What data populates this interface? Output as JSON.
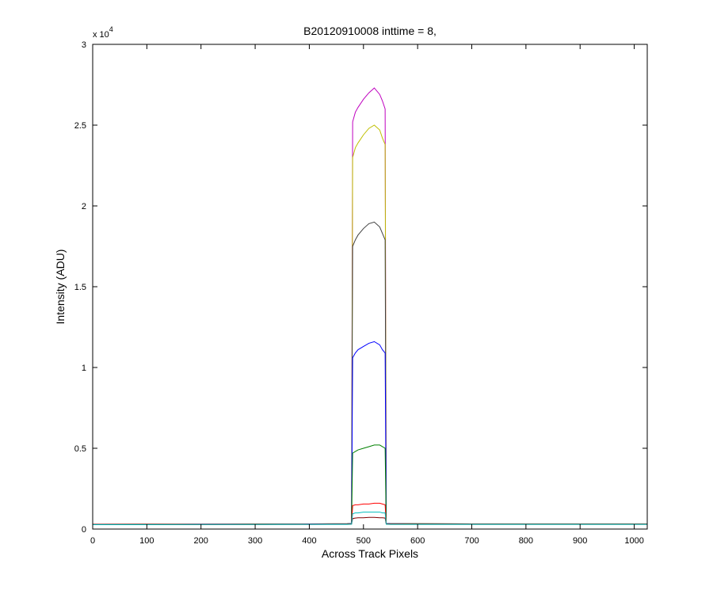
{
  "chart_data": {
    "type": "line",
    "title": "B20120910008 inttime = 8,",
    "x_label": "Across Track Pixels",
    "y_label": "Intensity (ADU)",
    "y_multiplier": {
      "base": "x 10",
      "exponent": "4"
    },
    "xlim": [
      0,
      1024
    ],
    "xticks": [
      0,
      100,
      200,
      300,
      400,
      500,
      600,
      700,
      800,
      900,
      1000
    ],
    "ylim": [
      0,
      30000
    ],
    "yticks": [
      0,
      {
        "value": 5000,
        "label": "0.5"
      },
      {
        "value": 10000,
        "label": "1"
      },
      {
        "value": 15000,
        "label": "1.5"
      },
      {
        "value": 20000,
        "label": "2"
      },
      {
        "value": 25000,
        "label": "2.5"
      },
      {
        "value": 30000,
        "label": "3"
      }
    ],
    "x": [
      0,
      100,
      200,
      300,
      400,
      470,
      478,
      480,
      485,
      490,
      500,
      510,
      520,
      530,
      535,
      540,
      542,
      550,
      600,
      700,
      800,
      900,
      1000,
      1024
    ],
    "series": [
      {
        "color": "#bf00bf",
        "values": [
          300,
          300,
          300,
          310,
          320,
          330,
          350,
          25200,
          25800,
          26100,
          26600,
          27000,
          27300,
          26900,
          26500,
          26000,
          350,
          340,
          330,
          320,
          320,
          320,
          320,
          320
        ]
      },
      {
        "color": "#bfbf00",
        "values": [
          300,
          300,
          300,
          310,
          320,
          330,
          350,
          23000,
          23600,
          23900,
          24400,
          24800,
          25000,
          24700,
          24200,
          23800,
          350,
          340,
          330,
          320,
          320,
          320,
          320,
          320
        ]
      },
      {
        "color": "#404040",
        "values": [
          290,
          300,
          300,
          300,
          310,
          330,
          340,
          17500,
          17900,
          18200,
          18600,
          18900,
          19000,
          18700,
          18300,
          17900,
          340,
          330,
          330,
          320,
          320,
          320,
          320,
          320
        ]
      },
      {
        "color": "#0000ff",
        "values": [
          290,
          290,
          300,
          300,
          310,
          320,
          340,
          10600,
          10900,
          11100,
          11300,
          11500,
          11600,
          11400,
          11100,
          10900,
          340,
          330,
          320,
          320,
          310,
          310,
          310,
          310
        ]
      },
      {
        "color": "#008000",
        "values": [
          280,
          290,
          290,
          300,
          300,
          310,
          330,
          4700,
          4800,
          4900,
          5000,
          5100,
          5200,
          5200,
          5100,
          5000,
          330,
          320,
          310,
          310,
          310,
          310,
          310,
          310
        ]
      },
      {
        "color": "#ff0000",
        "values": [
          280,
          280,
          290,
          290,
          300,
          300,
          320,
          1450,
          1500,
          1500,
          1550,
          1550,
          1600,
          1600,
          1550,
          1500,
          320,
          310,
          300,
          300,
          300,
          300,
          300,
          300
        ]
      },
      {
        "color": "#800000",
        "values": [
          270,
          280,
          280,
          290,
          290,
          300,
          310,
          650,
          680,
          700,
          700,
          720,
          720,
          700,
          700,
          680,
          310,
          300,
          300,
          300,
          300,
          300,
          300,
          300
        ]
      },
      {
        "color": "#00bfbf",
        "values": [
          270,
          270,
          280,
          280,
          290,
          290,
          300,
          950,
          1000,
          1000,
          1050,
          1050,
          1050,
          1050,
          1000,
          1000,
          300,
          290,
          290,
          290,
          290,
          290,
          290,
          290
        ]
      }
    ]
  }
}
